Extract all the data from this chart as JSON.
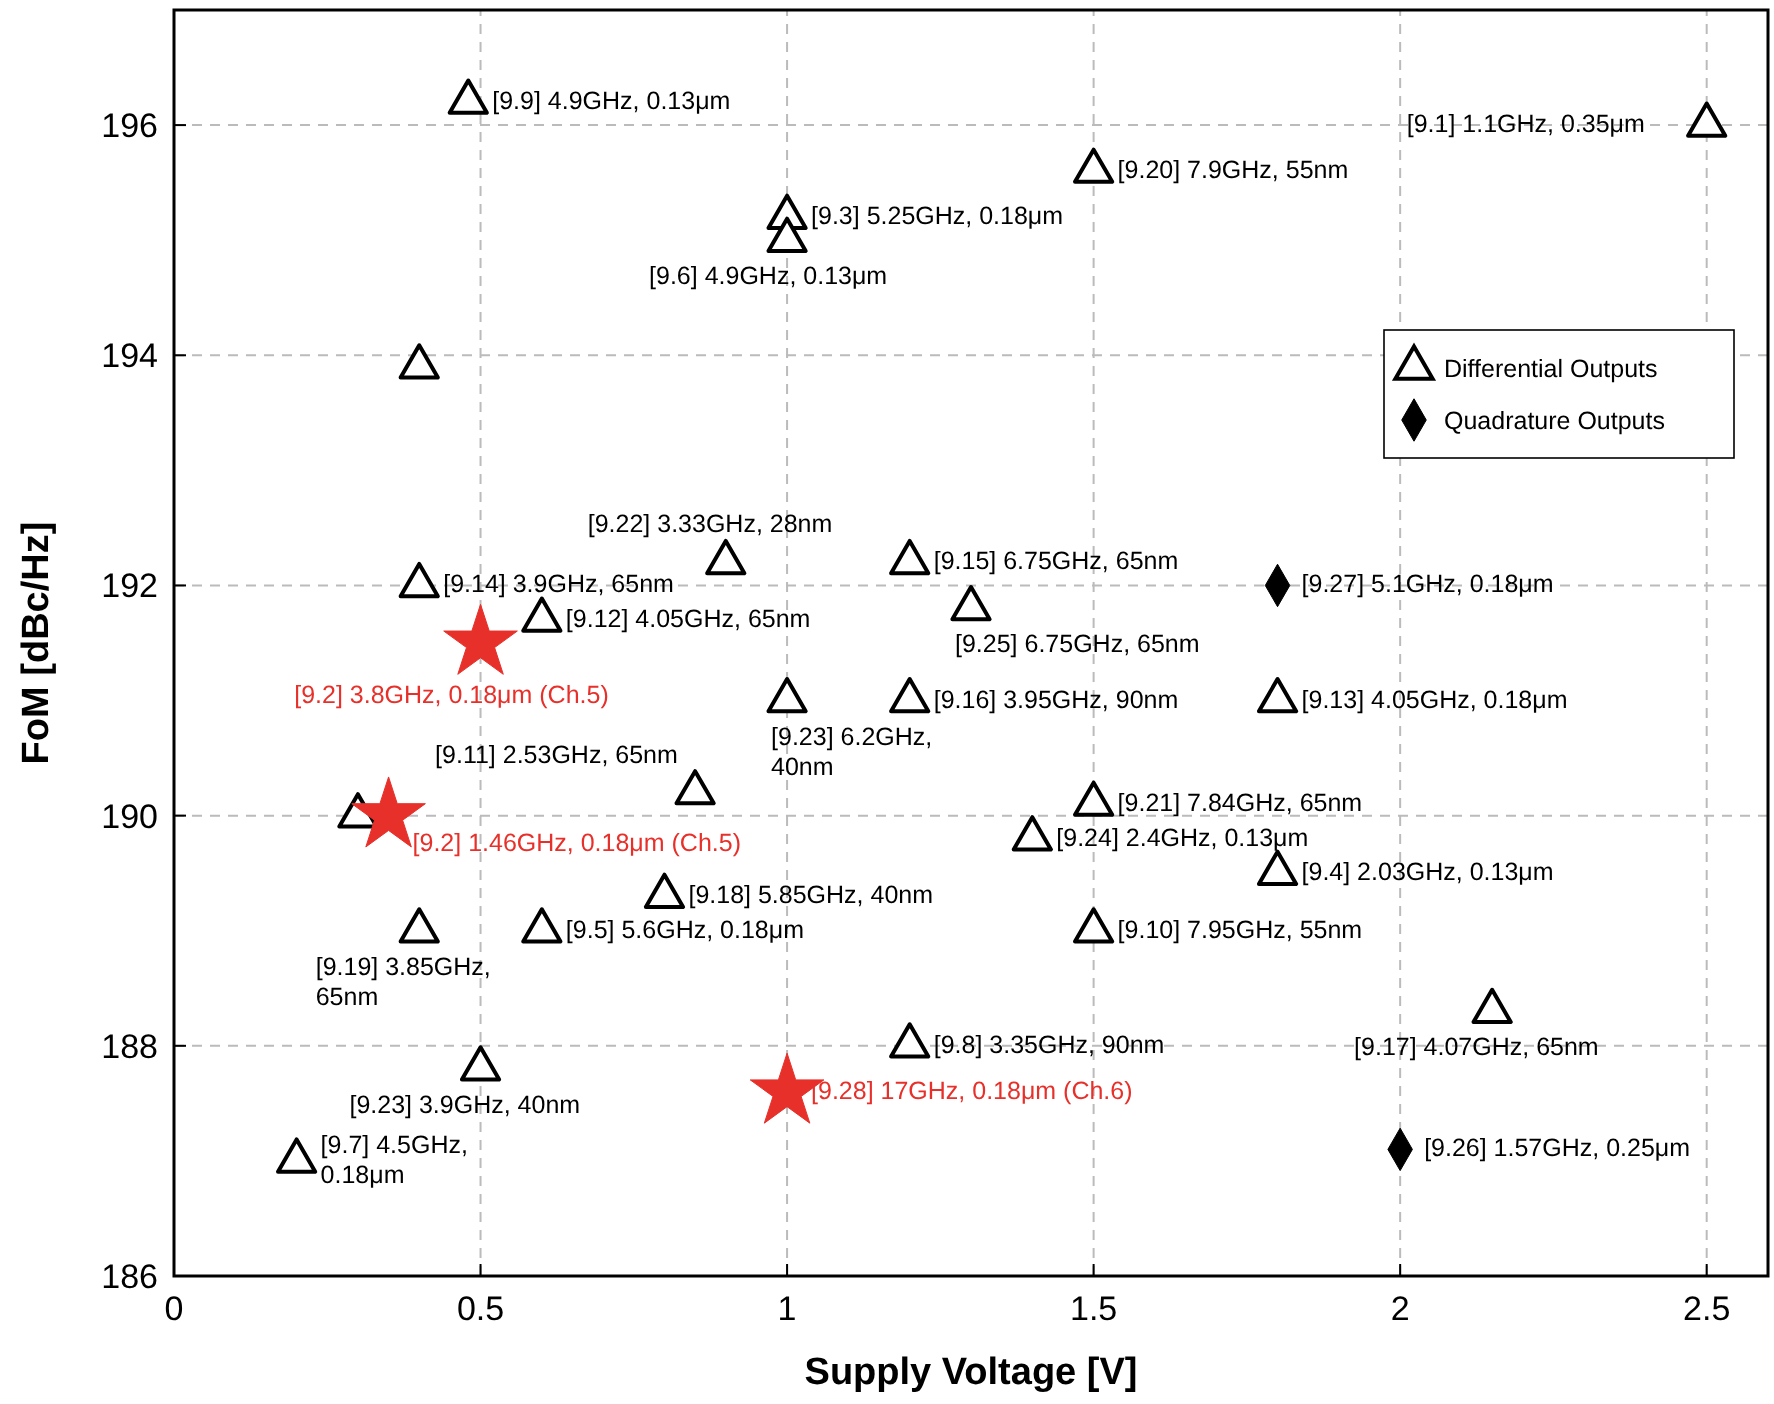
{
  "chart_data": {
    "type": "scatter",
    "xlabel": "Supply Voltage [V]",
    "ylabel": "FoM [dBc/Hz]",
    "xlim": [
      0,
      2.6
    ],
    "ylim": [
      186,
      197
    ],
    "xticks": [
      0,
      0.5,
      1,
      1.5,
      2,
      2.5
    ],
    "yticks": [
      186,
      188,
      190,
      192,
      194,
      196
    ],
    "grid": true,
    "legend": "top right",
    "series": [
      {
        "name": "Differential Outputs",
        "color": "#000000",
        "marker": "triangle",
        "x": [
          0.48,
          0.4,
          1.0,
          1.0,
          1.5,
          2.5,
          0.4,
          0.6,
          0.9,
          1.2,
          1.3,
          1.0,
          1.2,
          1.8,
          0.85,
          1.5,
          1.4,
          0.3,
          0.4,
          0.6,
          0.8,
          1.5,
          1.8,
          2.15,
          1.2,
          0.5,
          0.2
        ],
        "values": [
          196.2,
          193.9,
          195.2,
          195.0,
          195.6,
          196.0,
          192.0,
          191.7,
          192.2,
          192.2,
          191.8,
          191.0,
          191.0,
          191.0,
          190.2,
          190.1,
          189.8,
          190.0,
          189.0,
          189.0,
          189.3,
          189.0,
          189.5,
          188.3,
          188.0,
          187.8,
          187.0
        ]
      },
      {
        "name": "Quadrature Outputs",
        "color": "#000000",
        "marker": "diamond",
        "x": [
          1.8,
          2.0
        ],
        "values": [
          192.0,
          187.1
        ]
      },
      {
        "name": "[9.2] 3.8GHz, 0.18μm (Ch.5)",
        "color": "#e8302a",
        "marker": "star",
        "x": [
          0.5
        ],
        "values": [
          191.5
        ]
      },
      {
        "name": "[9.2] 1.46GHz, 0.18μm (Ch.5)",
        "color": "#e8302a",
        "marker": "star",
        "x": [
          0.35
        ],
        "values": [
          190.0
        ]
      },
      {
        "name": "[9.28] 17GHz, 0.18μm (Ch.6)",
        "color": "#e8302a",
        "marker": "star",
        "x": [
          1.0
        ],
        "values": [
          187.6
        ]
      }
    ],
    "annotations": [
      {
        "text": "[9.9] 4.9GHz, 0.13μm",
        "x": 0.48,
        "y": 196.2
      },
      {
        "text": "[9.3] 5.25GHz, 0.18μm",
        "x": 1.0,
        "y": 195.2
      },
      {
        "text": "[9.6] 4.9GHz, 0.13μm",
        "x": 1.0,
        "y": 195.0
      },
      {
        "text": "[9.20] 7.9GHz, 55nm",
        "x": 1.5,
        "y": 195.6
      },
      {
        "text": "[9.1] 1.1GHz, 0.35μm",
        "x": 2.5,
        "y": 196.0
      },
      {
        "text": "[9.14] 3.9GHz, 65nm",
        "x": 0.4,
        "y": 192.0
      },
      {
        "text": "[9.22] 3.33GHz, 28nm",
        "x": 0.9,
        "y": 192.2
      },
      {
        "text": "[9.15] 6.75GHz, 65nm",
        "x": 1.2,
        "y": 192.2
      },
      {
        "text": "[9.12] 4.05GHz, 65nm",
        "x": 0.6,
        "y": 191.7
      },
      {
        "text": "[9.27] 5.1GHz, 0.18μm",
        "x": 1.8,
        "y": 192.0
      },
      {
        "text": "[9.25] 6.75GHz, 65nm",
        "x": 1.3,
        "y": 191.8
      },
      {
        "text": "[9.16] 3.95GHz, 90nm",
        "x": 1.2,
        "y": 191.0
      },
      {
        "text": "[9.13] 4.05GHz, 0.18μm",
        "x": 1.8,
        "y": 191.0
      },
      {
        "text": "[9.23] 6.2GHz,\n40nm",
        "x": 1.0,
        "y": 191.0
      },
      {
        "text": "[9.11] 2.53GHz, 65nm",
        "x": 0.85,
        "y": 190.2
      },
      {
        "text": "[9.21] 7.84GHz, 65nm",
        "x": 1.5,
        "y": 190.1
      },
      {
        "text": "[9.19] 3.85GHz,\n65nm",
        "x": 0.4,
        "y": 189.0
      },
      {
        "text": "[9.24] 2.4GHz, 0.13μm",
        "x": 1.4,
        "y": 189.8
      },
      {
        "text": "[9.4] 2.03GHz, 0.13μm",
        "x": 1.8,
        "y": 189.5
      },
      {
        "text": "[9.7] 4.5GHz,\n0.18μm",
        "x": 0.2,
        "y": 187.0
      },
      {
        "text": "[9.18] 5.85GHz, 40nm",
        "x": 0.8,
        "y": 189.3
      },
      {
        "text": "[9.5] 5.6GHz, 0.18μm",
        "x": 0.6,
        "y": 189.0
      },
      {
        "text": "[9.10] 7.95GHz, 55nm",
        "x": 1.5,
        "y": 189.0
      },
      {
        "text": "[9.8] 3.35GHz, 90nm",
        "x": 1.2,
        "y": 188.0
      },
      {
        "text": "[9.17] 4.07GHz, 65nm",
        "x": 2.15,
        "y": 188.3
      },
      {
        "text": "[9.23] 3.9GHz, 40nm",
        "x": 0.5,
        "y": 187.8
      },
      {
        "text": "[9.26] 1.57GHz, 0.25μm",
        "x": 2.0,
        "y": 187.1
      }
    ]
  }
}
